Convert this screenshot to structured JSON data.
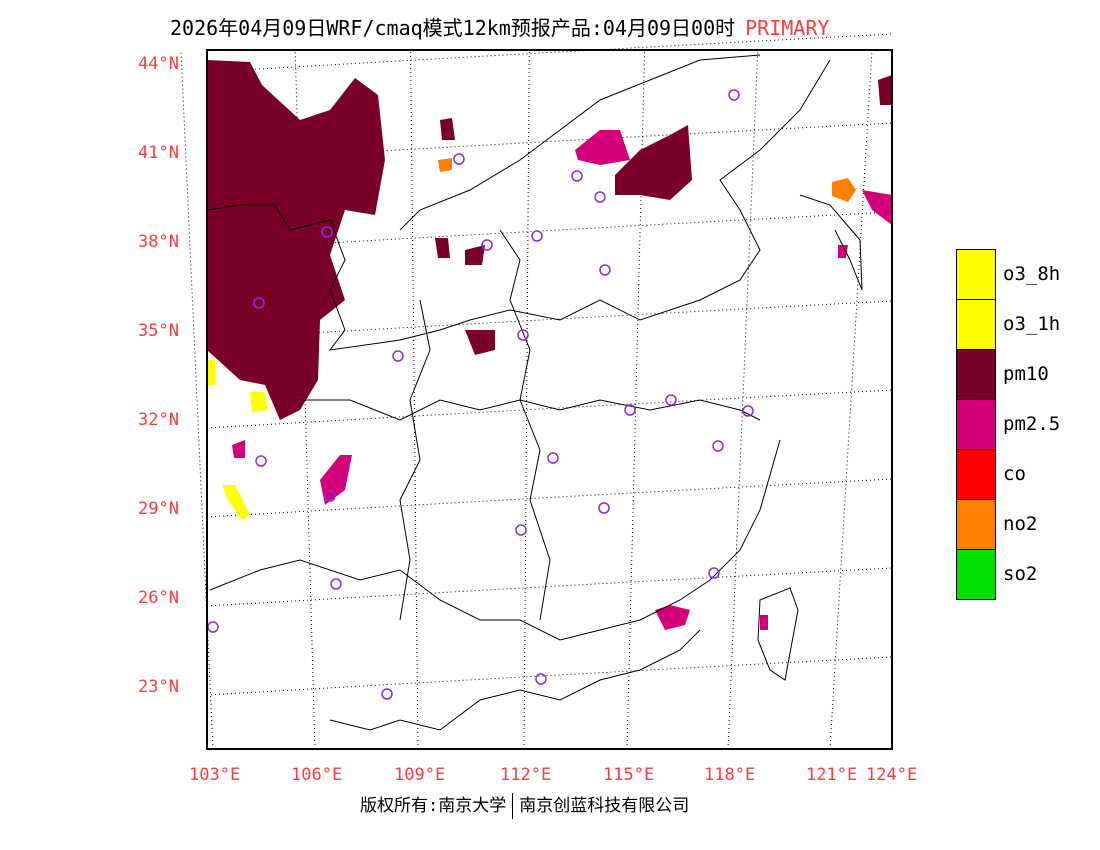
{
  "title": {
    "text": "2026年04月09日WRF/cmaq模式12km预报产品:04月09日00时",
    "tag": "PRIMARY"
  },
  "axes": {
    "lat_labels": [
      "44°N",
      "41°N",
      "38°N",
      "35°N",
      "32°N",
      "29°N",
      "26°N",
      "23°N"
    ],
    "lon_labels": [
      "103°E",
      "106°E",
      "109°E",
      "112°E",
      "115°E",
      "118°E",
      "121°E",
      "124°E"
    ]
  },
  "legend": [
    {
      "label": "o3_8h",
      "color": "#ffff00"
    },
    {
      "label": "o3_1h",
      "color": "#ffff00"
    },
    {
      "label": "pm10",
      "color": "#7a0028"
    },
    {
      "label": "pm2.5",
      "color": "#d4007a"
    },
    {
      "label": "co",
      "color": "#ff0000"
    },
    {
      "label": "no2",
      "color": "#ff8000"
    },
    {
      "label": "so2",
      "color": "#00e000"
    }
  ],
  "footer": {
    "left": "版权所有:南京大学",
    "right": "南京创蓝科技有限公司"
  }
}
